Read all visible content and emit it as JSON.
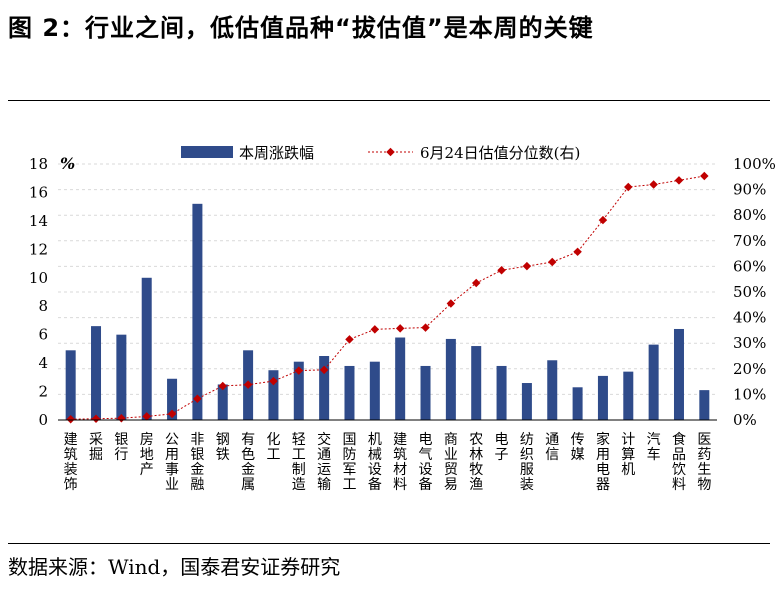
{
  "header": {
    "title": "图 2：行业之间，低估值品种“拔估值”是本周的关键"
  },
  "footer": {
    "source": "数据来源：Wind，国泰君安证券研究"
  },
  "colors": {
    "bar": "#2f4b8a",
    "line": "#c00000"
  },
  "chart_data": {
    "type": "bar",
    "categories": [
      "建筑装饰",
      "采掘",
      "银行",
      "房地产",
      "公用事业",
      "非银金融",
      "钢铁",
      "有色金属",
      "化工",
      "轻工制造",
      "交通运输",
      "国防军工",
      "机械设备",
      "建筑材料",
      "电气设备",
      "商业贸易",
      "农林牧渔",
      "电子",
      "纺织服装",
      "通信",
      "传媒",
      "家用电器",
      "计算机",
      "汽车",
      "食品饮料",
      "医药生物"
    ],
    "series": [
      {
        "name": "本周涨跌幅",
        "type": "bar",
        "axis": "left",
        "values": [
          4.9,
          6.6,
          6.0,
          10.0,
          2.9,
          15.2,
          2.5,
          4.9,
          3.5,
          4.1,
          4.5,
          3.8,
          4.1,
          5.8,
          3.8,
          5.7,
          5.2,
          3.8,
          2.6,
          4.2,
          2.3,
          3.1,
          3.4,
          5.3,
          6.4,
          2.1
        ]
      },
      {
        "name": "6月24日估值分位数(右)",
        "type": "line",
        "axis": "right",
        "values": [
          0.3,
          0.5,
          0.7,
          1.4,
          2.4,
          8.3,
          13.3,
          13.8,
          15.2,
          19.3,
          19.6,
          31.5,
          35.4,
          35.8,
          36.1,
          45.5,
          53.5,
          58.5,
          60.1,
          61.7,
          65.7,
          78.1,
          91.0,
          92.0,
          93.6,
          95.3
        ]
      }
    ],
    "y_left": {
      "unit_label": "%",
      "ylim": [
        0,
        18
      ],
      "ticks": [
        "0",
        "2",
        "4",
        "6",
        "8",
        "10",
        "12",
        "14",
        "16",
        "18"
      ]
    },
    "y_right": {
      "ylim": [
        0,
        100
      ],
      "ticks": [
        "0%",
        "10%",
        "20%",
        "30%",
        "40%",
        "50%",
        "60%",
        "70%",
        "80%",
        "90%",
        "100%"
      ]
    },
    "grid": true,
    "legend_placement": "top"
  }
}
